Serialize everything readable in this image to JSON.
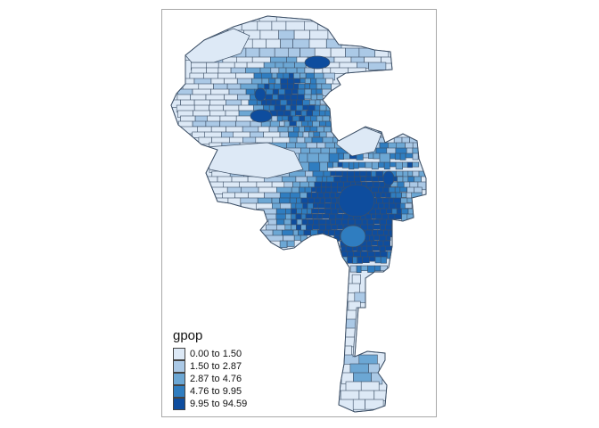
{
  "legend": {
    "title": "gpop",
    "items": [
      {
        "label": "0.00 to 1.50",
        "color": "#dde9f6"
      },
      {
        "label": "1.50 to 2.87",
        "color": "#abc9e6"
      },
      {
        "label": "2.87 to 4.76",
        "color": "#6ca7d4"
      },
      {
        "label": "4.76 to 9.95",
        "color": "#2f7dc0"
      },
      {
        "label": "9.95 to 94.59",
        "color": "#0e4d9e"
      }
    ]
  },
  "map": {
    "border_color": "#3c4f66"
  }
}
